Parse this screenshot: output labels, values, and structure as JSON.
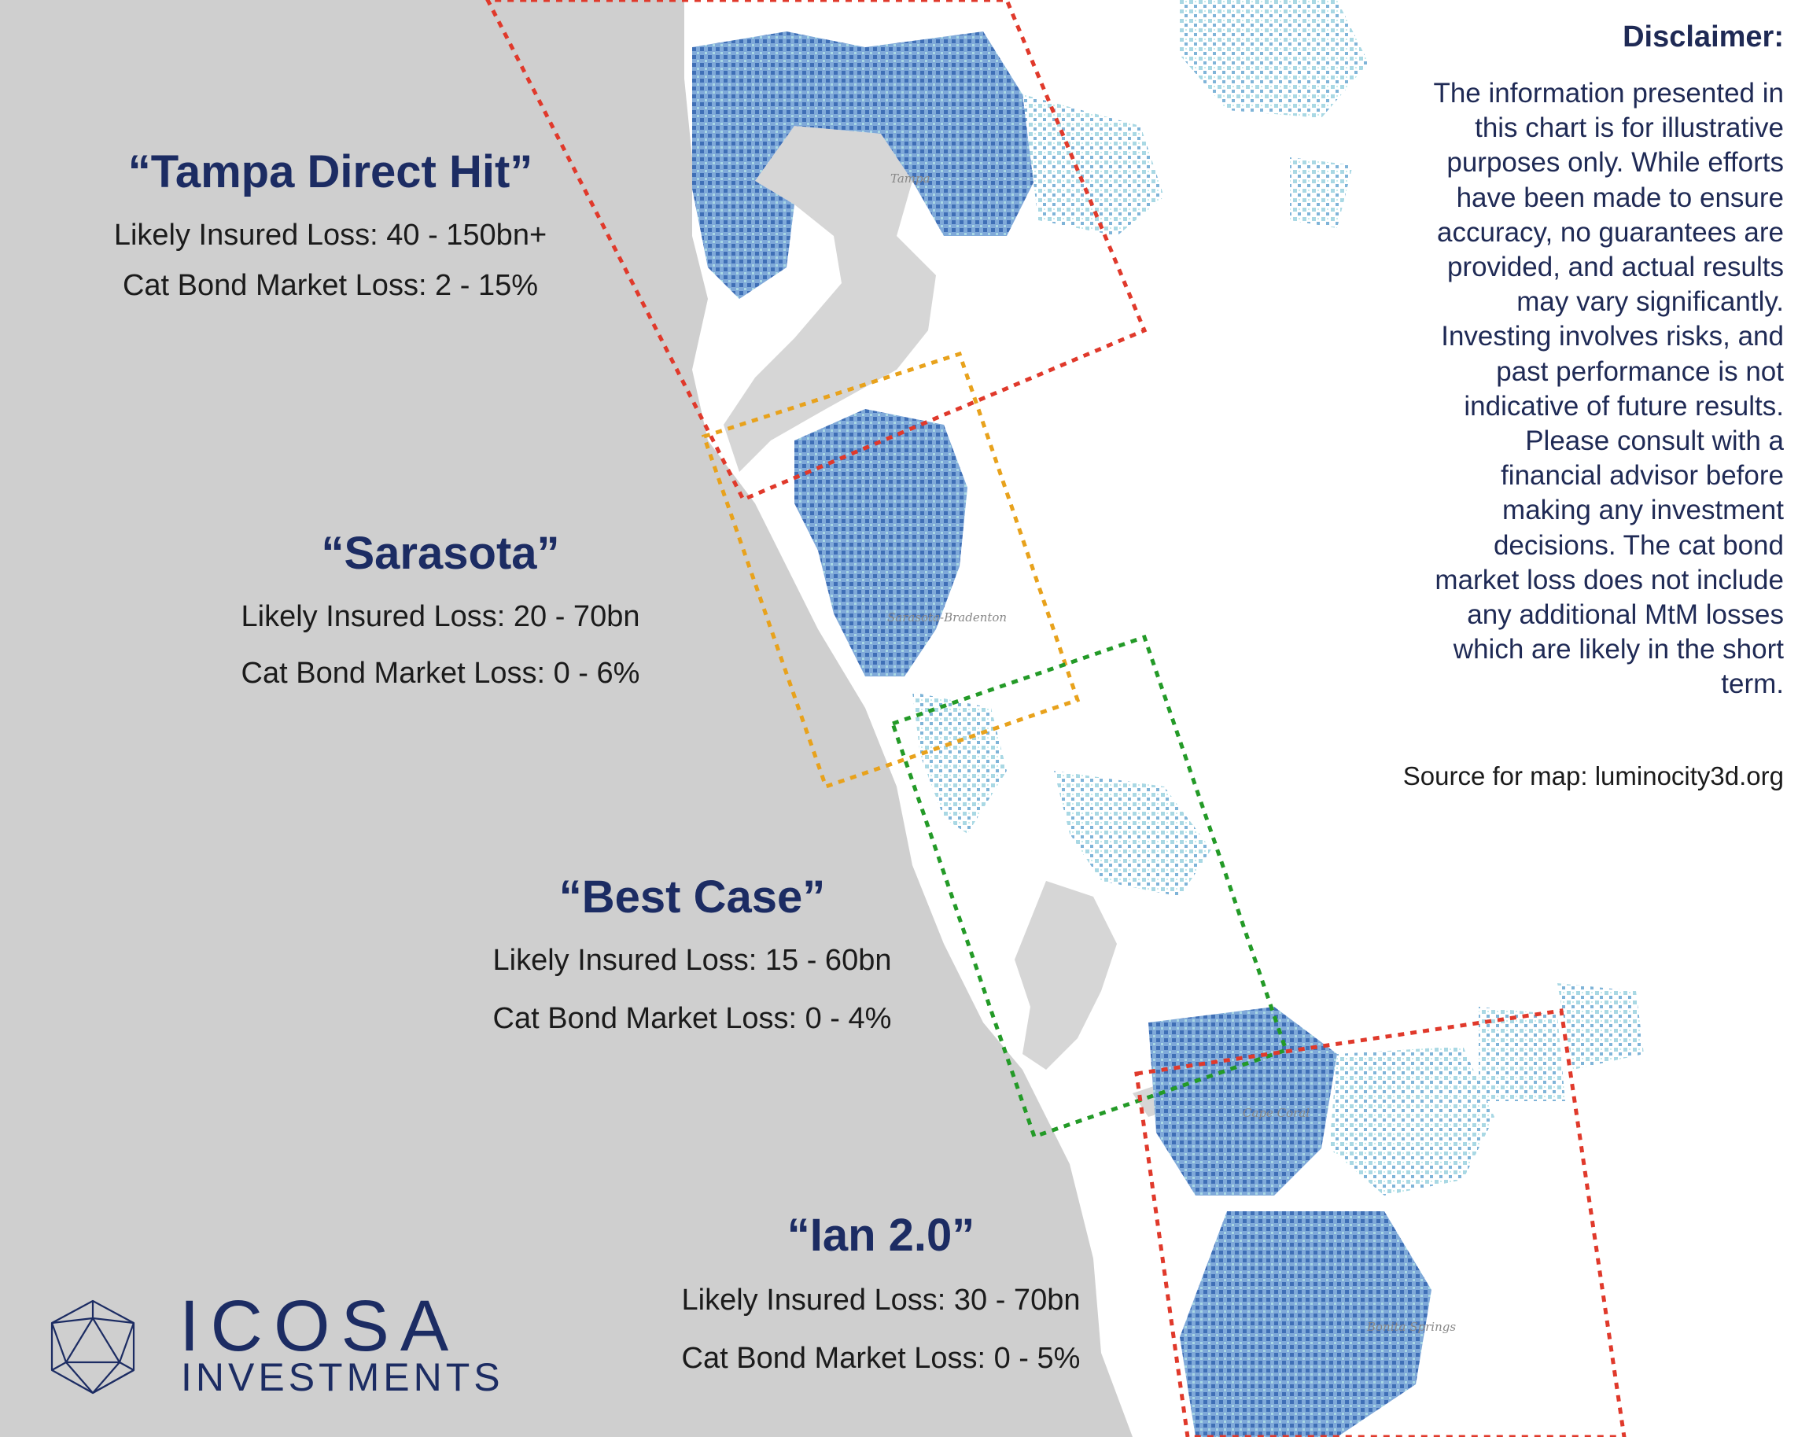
{
  "scenarios": [
    {
      "title": "“Tampa Direct Hit”",
      "insured_loss": "Likely Insured Loss: 40 - 150bn+",
      "cat_bond_loss": "Cat Bond Market Loss: 2 - 15%",
      "box_color": "#e0392b"
    },
    {
      "title": "“Sarasota”",
      "insured_loss": "Likely Insured Loss: 20 - 70bn",
      "cat_bond_loss": "Cat Bond Market Loss: 0 - 6%",
      "box_color": "#e8a21c"
    },
    {
      "title": "“Best Case”",
      "insured_loss": "Likely Insured Loss: 15 - 60bn",
      "cat_bond_loss": "Cat Bond Market Loss: 0 - 4%",
      "box_color": "#239a27"
    },
    {
      "title": "“Ian 2.0”",
      "insured_loss": "Likely Insured Loss: 30 - 70bn",
      "cat_bond_loss": "Cat Bond Market Loss: 0 - 5%",
      "box_color": "#e0392b"
    }
  ],
  "disclaimer": {
    "heading": "Disclaimer:",
    "lines": [
      "The information presented in",
      "this chart is for illustrative",
      "purposes only. While efforts",
      "have been made to ensure",
      "accuracy, no guarantees are",
      "provided, and actual results",
      "may vary significantly.",
      "Investing involves risks, and",
      "past performance is not",
      "indicative of future results.",
      "Please consult with a",
      "financial advisor before",
      "making any investment",
      "decisions. The cat bond",
      "market loss does not include",
      "any additional MtM losses",
      "which are likely in the short",
      "term."
    ]
  },
  "source": "Source for map: luminocity3d.org",
  "map_labels": [
    "Tampa",
    "Sarasota-Bradenton",
    "Cape Coral",
    "Bonita Springs"
  ],
  "logo": {
    "word1": "ICOSA",
    "word2": "INVESTMENTS"
  },
  "colors": {
    "water": "#cfcfcf",
    "land": "#ffffff",
    "urban_dense": "#4a7fc1",
    "urban_light": "#a9d8e4",
    "title_navy": "#1c2c63"
  }
}
